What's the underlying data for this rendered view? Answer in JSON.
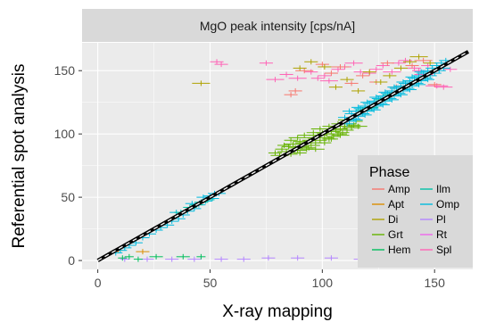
{
  "chart_data": {
    "type": "scatter",
    "title": "MgO peak intensity [cps/nA]",
    "xlabel": "X-ray mapping",
    "ylabel": "Referential spot analysis",
    "xlim": [
      -7,
      167
    ],
    "ylim": [
      -7,
      172
    ],
    "xticks": [
      "0",
      "50",
      "100",
      "150"
    ],
    "yticks": [
      "0",
      "50",
      "100",
      "150"
    ],
    "grid": true,
    "legend": {
      "title": "Phase",
      "position": "bottom-right",
      "entries": [
        {
          "name": "Amp",
          "color": "#F8766D"
        },
        {
          "name": "Apt",
          "color": "#DB8E00"
        },
        {
          "name": "Di",
          "color": "#AEA200"
        },
        {
          "name": "Grt",
          "color": "#64B200"
        },
        {
          "name": "Hem",
          "color": "#00BD5C"
        },
        {
          "name": "Ilm",
          "color": "#00C1A7"
        },
        {
          "name": "Omp",
          "color": "#00BADE"
        },
        {
          "name": "Pl",
          "color": "#B385FF"
        },
        {
          "name": "Rt",
          "color": "#EF67EB"
        },
        {
          "name": "Spl",
          "color": "#FF63B6"
        }
      ]
    },
    "reference_line": {
      "slope": 1,
      "intercept": 0
    },
    "fit_line": {
      "slope": 1,
      "intercept": 0
    },
    "series": [
      {
        "name": "Spl",
        "color": "#FF63B6",
        "points": [
          [
            53,
            157,
            3
          ],
          [
            55,
            155,
            3
          ],
          [
            75,
            156,
            3
          ],
          [
            79,
            143,
            4
          ],
          [
            84,
            147,
            3
          ],
          [
            89,
            144,
            4
          ],
          [
            95,
            149,
            3
          ],
          [
            98,
            144,
            3
          ],
          [
            101,
            146,
            3
          ],
          [
            103,
            142,
            4
          ],
          [
            107,
            151,
            3
          ],
          [
            110,
            153,
            3
          ],
          [
            114,
            156,
            4
          ],
          [
            117,
            149,
            3
          ],
          [
            121,
            148,
            3
          ],
          [
            124,
            151,
            3
          ],
          [
            127,
            154,
            3
          ],
          [
            131,
            149,
            4
          ],
          [
            134,
            156,
            3
          ],
          [
            137,
            158,
            3
          ],
          [
            141,
            152,
            3
          ],
          [
            143,
            150,
            3
          ],
          [
            145,
            147,
            4
          ],
          [
            147,
            154,
            3
          ],
          [
            149,
            148,
            3
          ],
          [
            151,
            138,
            5
          ],
          [
            154,
            137,
            4
          ],
          [
            157,
            151,
            3
          ]
        ]
      },
      {
        "name": "Amp",
        "color": "#F8766D",
        "points": [
          [
            86,
            131,
            3
          ],
          [
            88,
            134,
            3
          ],
          [
            92,
            150,
            4
          ],
          [
            100,
            155,
            3
          ],
          [
            104,
            148,
            3
          ],
          [
            108,
            153,
            4
          ],
          [
            113,
            140,
            3
          ],
          [
            118,
            146,
            3
          ],
          [
            124,
            141,
            3
          ],
          [
            129,
            156,
            3
          ],
          [
            133,
            137,
            3
          ],
          [
            140,
            154,
            3
          ],
          [
            145,
            158,
            4
          ],
          [
            150,
            139,
            3
          ]
        ]
      },
      {
        "name": "Di",
        "color": "#AEA200",
        "points": [
          [
            46,
            140,
            4
          ],
          [
            90,
            152,
            3
          ],
          [
            95,
            157,
            3
          ],
          [
            101,
            153,
            3
          ],
          [
            106,
            137,
            3
          ],
          [
            111,
            143,
            3
          ],
          [
            116,
            134,
            3
          ],
          [
            121,
            149,
            3
          ],
          [
            126,
            141,
            3
          ],
          [
            130,
            146,
            3
          ],
          [
            135,
            152,
            3
          ],
          [
            139,
            157,
            3
          ],
          [
            143,
            161,
            4
          ],
          [
            148,
            156,
            3
          ]
        ]
      },
      {
        "name": "Apt",
        "color": "#DB8E00",
        "points": [
          [
            9,
            8,
            2
          ],
          [
            20,
            7,
            3
          ]
        ]
      },
      {
        "name": "Pl",
        "color": "#B385FF",
        "points": [
          [
            12,
            1,
            2
          ],
          [
            22,
            1,
            3
          ],
          [
            33,
            1,
            3
          ],
          [
            43,
            1,
            3
          ],
          [
            55,
            1,
            3
          ],
          [
            65,
            1,
            3
          ],
          [
            76,
            2,
            3
          ],
          [
            89,
            2,
            3
          ],
          [
            104,
            2,
            3
          ],
          [
            117,
            1,
            3
          ],
          [
            132,
            1,
            3
          ]
        ]
      },
      {
        "name": "Hem",
        "color": "#00BD5C",
        "points": [
          [
            11,
            2,
            2
          ],
          [
            14,
            3,
            2
          ],
          [
            18,
            1,
            2
          ],
          [
            26,
            3,
            3
          ],
          [
            38,
            3,
            3
          ],
          [
            46,
            3,
            2
          ]
        ]
      },
      {
        "name": "Rt",
        "color": "#EF67EB",
        "points": []
      },
      {
        "name": "Grt",
        "color": "#64B200",
        "points": [
          [
            79,
            85,
            3
          ],
          [
            81,
            83,
            4
          ],
          [
            82,
            88,
            3
          ],
          [
            84,
            86,
            4
          ],
          [
            85,
            90,
            3
          ],
          [
            86,
            84,
            3
          ],
          [
            87,
            92,
            4
          ],
          [
            88,
            89,
            3
          ],
          [
            89,
            87,
            4
          ],
          [
            90,
            94,
            3
          ],
          [
            91,
            90,
            3
          ],
          [
            92,
            93,
            4
          ],
          [
            93,
            88,
            3
          ],
          [
            94,
            95,
            3
          ],
          [
            95,
            91,
            4
          ],
          [
            96,
            97,
            3
          ],
          [
            97,
            93,
            3
          ],
          [
            98,
            99,
            4
          ],
          [
            99,
            95,
            3
          ],
          [
            100,
            101,
            3
          ],
          [
            101,
            97,
            4
          ],
          [
            102,
            100,
            3
          ],
          [
            103,
            96,
            3
          ],
          [
            104,
            102,
            4
          ],
          [
            105,
            98,
            3
          ],
          [
            106,
            103,
            3
          ],
          [
            107,
            100,
            4
          ],
          [
            108,
            104,
            3
          ],
          [
            109,
            101,
            3
          ],
          [
            110,
            106,
            4
          ],
          [
            111,
            103,
            3
          ],
          [
            112,
            108,
            3
          ],
          [
            113,
            105,
            4
          ],
          [
            114,
            107,
            3
          ],
          [
            115,
            110,
            3
          ],
          [
            116,
            106,
            4
          ],
          [
            90,
            85,
            3
          ],
          [
            94,
            89,
            3
          ],
          [
            97,
            88,
            4
          ],
          [
            101,
            93,
            3
          ],
          [
            104,
            96,
            3
          ],
          [
            108,
            99,
            4
          ],
          [
            83,
            91,
            3
          ],
          [
            86,
            95,
            3
          ],
          [
            89,
            97,
            4
          ],
          [
            92,
            99,
            3
          ],
          [
            96,
            101,
            3
          ],
          [
            99,
            104,
            4
          ],
          [
            103,
            106,
            3
          ],
          [
            107,
            108,
            3
          ],
          [
            111,
            111,
            4
          ]
        ]
      },
      {
        "name": "Omp",
        "color": "#00BADE",
        "points": [
          [
            48,
            47,
            3
          ],
          [
            50,
            51,
            3
          ],
          [
            51,
            49,
            3
          ],
          [
            52,
            53,
            3
          ],
          [
            45,
            44,
            3
          ],
          [
            43,
            41,
            3
          ],
          [
            40,
            39,
            3
          ],
          [
            38,
            36,
            3
          ],
          [
            36,
            33,
            3
          ],
          [
            33,
            31,
            3
          ],
          [
            31,
            28,
            3
          ],
          [
            28,
            26,
            3
          ],
          [
            26,
            24,
            3
          ],
          [
            23,
            21,
            3
          ],
          [
            20,
            18,
            3
          ],
          [
            17,
            14,
            3
          ],
          [
            14,
            12,
            3
          ],
          [
            12,
            10,
            3
          ],
          [
            10,
            8,
            3
          ],
          [
            8,
            6,
            3
          ],
          [
            35,
            38,
            3
          ],
          [
            42,
            45,
            3
          ],
          [
            47,
            50,
            3
          ],
          [
            54,
            53,
            3
          ],
          [
            110,
            113,
            3
          ],
          [
            112,
            110,
            3
          ],
          [
            113,
            116,
            3
          ],
          [
            114,
            112,
            3
          ],
          [
            115,
            118,
            3
          ],
          [
            116,
            114,
            3
          ],
          [
            117,
            120,
            3
          ],
          [
            118,
            116,
            3
          ],
          [
            119,
            122,
            3
          ],
          [
            120,
            118,
            3
          ],
          [
            121,
            124,
            3
          ],
          [
            122,
            120,
            3
          ],
          [
            123,
            126,
            3
          ],
          [
            124,
            122,
            3
          ],
          [
            125,
            128,
            3
          ],
          [
            126,
            124,
            3
          ],
          [
            127,
            130,
            3
          ],
          [
            128,
            126,
            3
          ],
          [
            129,
            132,
            3
          ],
          [
            130,
            128,
            3
          ],
          [
            131,
            134,
            3
          ],
          [
            132,
            130,
            3
          ],
          [
            133,
            136,
            3
          ],
          [
            134,
            132,
            3
          ],
          [
            135,
            138,
            3
          ],
          [
            136,
            134,
            3
          ],
          [
            137,
            140,
            3
          ],
          [
            138,
            136,
            3
          ],
          [
            139,
            142,
            3
          ],
          [
            140,
            138,
            3
          ],
          [
            141,
            144,
            3
          ],
          [
            142,
            140,
            3
          ],
          [
            143,
            146,
            3
          ],
          [
            144,
            142,
            3
          ],
          [
            145,
            148,
            3
          ],
          [
            146,
            144,
            3
          ],
          [
            147,
            150,
            3
          ],
          [
            148,
            146,
            3
          ],
          [
            149,
            152,
            3
          ],
          [
            150,
            148,
            3
          ],
          [
            151,
            154,
            3
          ],
          [
            152,
            150,
            3
          ],
          [
            153,
            156,
            3
          ],
          [
            154,
            152,
            3
          ],
          [
            155,
            158,
            3
          ],
          [
            111,
            108,
            3
          ],
          [
            115,
            111,
            3
          ],
          [
            119,
            115,
            3
          ],
          [
            123,
            119,
            3
          ],
          [
            127,
            123,
            3
          ],
          [
            131,
            127,
            3
          ],
          [
            135,
            131,
            3
          ],
          [
            139,
            135,
            3
          ],
          [
            143,
            139,
            3
          ],
          [
            147,
            143,
            3
          ],
          [
            112,
            118,
            3
          ],
          [
            116,
            121,
            3
          ],
          [
            120,
            125,
            3
          ],
          [
            124,
            129,
            3
          ],
          [
            128,
            133,
            3
          ],
          [
            132,
            137,
            3
          ],
          [
            136,
            141,
            3
          ],
          [
            140,
            145,
            3
          ],
          [
            144,
            149,
            3
          ]
        ]
      },
      {
        "name": "Ilm",
        "color": "#00C1A7",
        "points": [
          [
            44,
            44,
            3
          ],
          [
            46,
            46,
            3
          ],
          [
            49,
            48,
            3
          ],
          [
            41,
            42,
            3
          ],
          [
            37,
            38,
            3
          ],
          [
            118,
            119,
            3
          ],
          [
            122,
            121,
            3
          ],
          [
            126,
            127,
            3
          ],
          [
            130,
            131,
            3
          ]
        ]
      }
    ]
  }
}
